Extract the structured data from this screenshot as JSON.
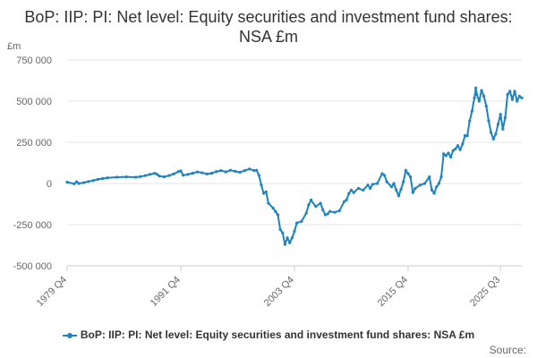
{
  "chart_data": {
    "type": "line",
    "title": "BoP: IIP: PI: Net level: Equity securities and investment fund shares: NSA £m",
    "ylabel": "£m",
    "ylim": [
      -500000,
      750000
    ],
    "y_ticks": [
      {
        "value": 750000,
        "label": "750 000"
      },
      {
        "value": 500000,
        "label": "500 000"
      },
      {
        "value": 250000,
        "label": "250 000"
      },
      {
        "value": 0,
        "label": "0"
      },
      {
        "value": -250000,
        "label": "-250 000"
      },
      {
        "value": -500000,
        "label": "-500 000"
      }
    ],
    "x_range": [
      1979.75,
      2025.5
    ],
    "x_ticks": [
      {
        "value": 1979.75,
        "label": "1979 Q4"
      },
      {
        "value": 1991.75,
        "label": "1991 Q4"
      },
      {
        "value": 2003.75,
        "label": "2003 Q4"
      },
      {
        "value": 2015.75,
        "label": "2015 Q4"
      },
      {
        "value": 2025.5,
        "label": "2025 Q3"
      }
    ],
    "series": [
      {
        "name": "BoP: IIP: PI: Net level: Equity securities and investment fund shares: NSA £m",
        "color": "#1e83c0",
        "points": [
          [
            1979.75,
            8000
          ],
          [
            1980.5,
            -2000
          ],
          [
            1980.75,
            10000
          ],
          [
            1981.0,
            0
          ],
          [
            1981.5,
            5000
          ],
          [
            1982.0,
            12000
          ],
          [
            1982.5,
            18000
          ],
          [
            1983.0,
            25000
          ],
          [
            1983.5,
            30000
          ],
          [
            1984.0,
            34000
          ],
          [
            1985.0,
            38000
          ],
          [
            1986.0,
            40000
          ],
          [
            1987.0,
            38000
          ],
          [
            1987.5,
            42000
          ],
          [
            1988.0,
            48000
          ],
          [
            1988.5,
            55000
          ],
          [
            1989.0,
            62000
          ],
          [
            1989.25,
            55000
          ],
          [
            1989.5,
            45000
          ],
          [
            1990.0,
            40000
          ],
          [
            1990.5,
            48000
          ],
          [
            1991.0,
            58000
          ],
          [
            1991.5,
            72000
          ],
          [
            1991.75,
            76000
          ],
          [
            1992.0,
            50000
          ],
          [
            1992.5,
            55000
          ],
          [
            1993.0,
            62000
          ],
          [
            1993.5,
            70000
          ],
          [
            1994.0,
            65000
          ],
          [
            1994.5,
            58000
          ],
          [
            1995.0,
            62000
          ],
          [
            1995.5,
            72000
          ],
          [
            1996.0,
            78000
          ],
          [
            1996.5,
            70000
          ],
          [
            1997.0,
            80000
          ],
          [
            1997.5,
            74000
          ],
          [
            1998.0,
            68000
          ],
          [
            1998.5,
            78000
          ],
          [
            1999.0,
            88000
          ],
          [
            1999.5,
            78000
          ],
          [
            1999.75,
            80000
          ],
          [
            2000.0,
            50000
          ],
          [
            2000.25,
            -10000
          ],
          [
            2000.5,
            -60000
          ],
          [
            2000.75,
            -50000
          ],
          [
            2001.0,
            -120000
          ],
          [
            2001.5,
            -150000
          ],
          [
            2001.75,
            -170000
          ],
          [
            2002.0,
            -190000
          ],
          [
            2002.25,
            -280000
          ],
          [
            2002.5,
            -300000
          ],
          [
            2002.75,
            -370000
          ],
          [
            2003.0,
            -330000
          ],
          [
            2003.25,
            -360000
          ],
          [
            2003.5,
            -330000
          ],
          [
            2003.75,
            -290000
          ],
          [
            2004.0,
            -240000
          ],
          [
            2004.5,
            -230000
          ],
          [
            2005.0,
            -180000
          ],
          [
            2005.25,
            -130000
          ],
          [
            2005.5,
            -100000
          ],
          [
            2006.0,
            -140000
          ],
          [
            2006.5,
            -120000
          ],
          [
            2006.75,
            -160000
          ],
          [
            2007.0,
            -190000
          ],
          [
            2007.25,
            -185000
          ],
          [
            2007.5,
            -170000
          ],
          [
            2008.0,
            -175000
          ],
          [
            2008.5,
            -165000
          ],
          [
            2009.0,
            -110000
          ],
          [
            2009.25,
            -100000
          ],
          [
            2009.5,
            -60000
          ],
          [
            2009.75,
            -40000
          ],
          [
            2010.0,
            -55000
          ],
          [
            2010.5,
            -30000
          ],
          [
            2011.0,
            -40000
          ],
          [
            2011.5,
            -10000
          ],
          [
            2011.75,
            -30000
          ],
          [
            2012.0,
            -5000
          ],
          [
            2012.5,
            0
          ],
          [
            2013.0,
            60000
          ],
          [
            2013.25,
            50000
          ],
          [
            2013.5,
            10000
          ],
          [
            2014.0,
            -20000
          ],
          [
            2014.25,
            0
          ],
          [
            2014.5,
            -40000
          ],
          [
            2014.75,
            -75000
          ],
          [
            2015.0,
            -35000
          ],
          [
            2015.25,
            10000
          ],
          [
            2015.5,
            80000
          ],
          [
            2015.75,
            60000
          ],
          [
            2016.0,
            40000
          ],
          [
            2016.25,
            -55000
          ],
          [
            2016.5,
            -30000
          ],
          [
            2017.0,
            -10000
          ],
          [
            2017.5,
            0
          ],
          [
            2018.0,
            40000
          ],
          [
            2018.25,
            -40000
          ],
          [
            2018.5,
            -60000
          ],
          [
            2018.75,
            -20000
          ],
          [
            2019.0,
            0
          ],
          [
            2019.25,
            40000
          ],
          [
            2019.5,
            180000
          ],
          [
            2019.75,
            170000
          ],
          [
            2020.0,
            185000
          ],
          [
            2020.25,
            160000
          ],
          [
            2020.5,
            200000
          ],
          [
            2020.75,
            210000
          ],
          [
            2021.0,
            230000
          ],
          [
            2021.25,
            205000
          ],
          [
            2021.5,
            240000
          ],
          [
            2021.75,
            290000
          ],
          [
            2022.0,
            290000
          ],
          [
            2022.25,
            380000
          ],
          [
            2022.5,
            440000
          ],
          [
            2022.75,
            520000
          ],
          [
            2022.9,
            580000
          ],
          [
            2023.0,
            540000
          ],
          [
            2023.25,
            500000
          ],
          [
            2023.5,
            565000
          ],
          [
            2023.75,
            530000
          ],
          [
            2024.0,
            470000
          ],
          [
            2024.25,
            380000
          ],
          [
            2024.5,
            310000
          ],
          [
            2024.75,
            270000
          ],
          [
            2025.0,
            300000
          ],
          [
            2025.25,
            360000
          ],
          [
            2025.5,
            420000
          ],
          [
            2025.75,
            330000
          ],
          [
            2026.0,
            400000
          ],
          [
            2026.25,
            540000
          ],
          [
            2026.5,
            560000
          ],
          [
            2026.75,
            510000
          ],
          [
            2027.0,
            560000
          ],
          [
            2027.25,
            500000
          ],
          [
            2027.5,
            530000
          ],
          [
            2027.75,
            520000
          ]
        ]
      }
    ],
    "source_label": "Source:"
  }
}
